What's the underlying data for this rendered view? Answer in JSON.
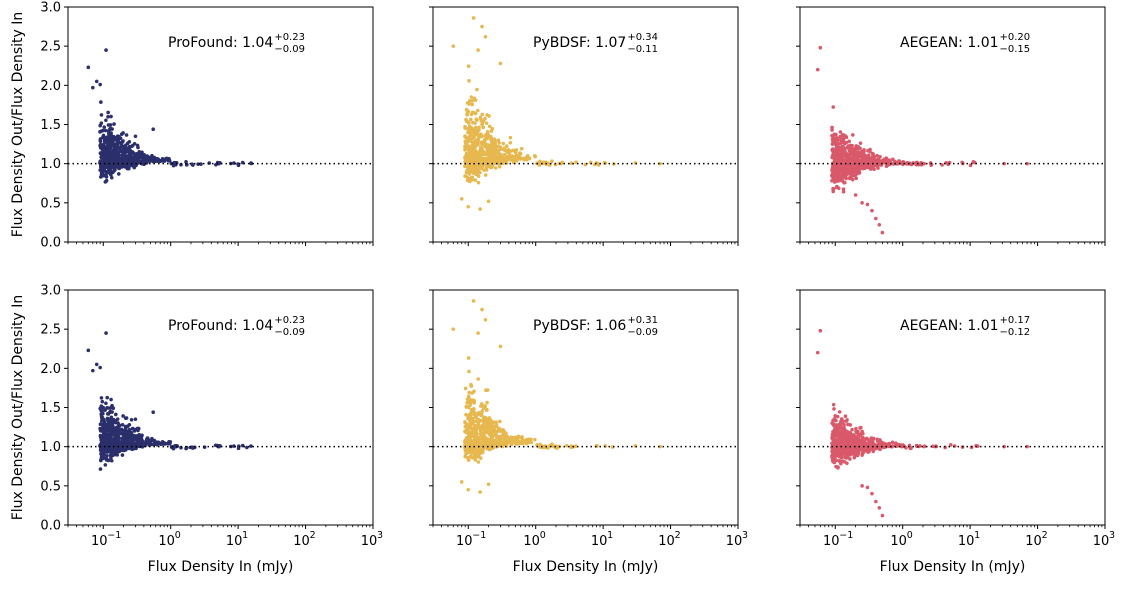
{
  "chart_data": {
    "type": "scatter",
    "layout": {
      "rows": 2,
      "cols": 3
    },
    "x_scale": "log",
    "xlim": [
      0.03,
      1000
    ],
    "ylim": [
      0,
      3
    ],
    "x_ticks": [
      0.1,
      1,
      10,
      100,
      1000
    ],
    "x_tick_labels": [
      {
        "base": "10",
        "exp": "−1"
      },
      {
        "base": "10",
        "exp": "0"
      },
      {
        "base": "10",
        "exp": "1"
      },
      {
        "base": "10",
        "exp": "2"
      },
      {
        "base": "10",
        "exp": "3"
      }
    ],
    "y_ticks": [
      0.0,
      0.5,
      1.0,
      1.5,
      2.0,
      2.5,
      3.0
    ],
    "y_tick_labels": [
      "0.0",
      "0.5",
      "1.0",
      "1.5",
      "2.0",
      "2.5",
      "3.0"
    ],
    "xlabel": "Flux Density In (mJy)",
    "ylabel": "Flux Density Out/Flux Density In",
    "reference_line": {
      "y": 1.0,
      "style": "dotted",
      "color": "#000000"
    },
    "panels": [
      {
        "row": 0,
        "col": 0,
        "name": "ProFound",
        "color": "#2b2f6b",
        "annotation": {
          "prefix": "ProFound: ",
          "value": "1.04",
          "upper": "+0.23",
          "lower": "−0.09"
        },
        "distribution": {
          "median": 1.04,
          "upper": 0.23,
          "lower": 0.09,
          "n": 700
        },
        "outliers": [
          [
            0.11,
            2.45
          ],
          [
            0.06,
            2.23
          ],
          [
            0.08,
            2.05
          ],
          [
            0.09,
            2.01
          ],
          [
            0.07,
            1.97
          ],
          [
            0.55,
            1.44
          ],
          [
            0.3,
            1.35
          ]
        ]
      },
      {
        "row": 0,
        "col": 1,
        "name": "PyBDSF",
        "color": "#e6b84f",
        "annotation": {
          "prefix": "PyBDSF: ",
          "value": "1.07",
          "upper": "+0.34",
          "lower": "−0.11"
        },
        "distribution": {
          "median": 1.07,
          "upper": 0.34,
          "lower": 0.11,
          "n": 700
        },
        "outliers": [
          [
            0.12,
            2.86
          ],
          [
            0.16,
            2.75
          ],
          [
            0.18,
            2.62
          ],
          [
            0.06,
            2.5
          ],
          [
            0.14,
            2.45
          ],
          [
            0.3,
            2.28
          ],
          [
            0.1,
            0.45
          ],
          [
            0.15,
            0.42
          ],
          [
            0.2,
            0.52
          ],
          [
            0.08,
            0.55
          ],
          [
            30,
            1.01
          ],
          [
            70,
            1.0
          ]
        ]
      },
      {
        "row": 0,
        "col": 2,
        "name": "AEGEAN",
        "color": "#d9596a",
        "annotation": {
          "prefix": "AEGEAN: ",
          "value": "1.01",
          "upper": "+0.20",
          "lower": "−0.15"
        },
        "distribution": {
          "median": 1.01,
          "upper": 0.2,
          "lower": 0.15,
          "n": 700
        },
        "outliers": [
          [
            0.06,
            2.48
          ],
          [
            0.055,
            2.2
          ],
          [
            0.5,
            0.12
          ],
          [
            0.45,
            0.22
          ],
          [
            0.4,
            0.3
          ],
          [
            0.35,
            0.4
          ],
          [
            0.3,
            0.48
          ],
          [
            0.25,
            0.5
          ],
          [
            0.2,
            0.6
          ],
          [
            32,
            1.0
          ],
          [
            70,
            1.0
          ]
        ]
      },
      {
        "row": 1,
        "col": 0,
        "name": "ProFound",
        "color": "#2b2f6b",
        "annotation": {
          "prefix": "ProFound: ",
          "value": "1.04",
          "upper": "+0.23",
          "lower": "−0.09"
        },
        "distribution": {
          "median": 1.04,
          "upper": 0.23,
          "lower": 0.09,
          "n": 700
        },
        "outliers": [
          [
            0.11,
            2.45
          ],
          [
            0.06,
            2.23
          ],
          [
            0.08,
            2.05
          ],
          [
            0.09,
            2.01
          ],
          [
            0.07,
            1.97
          ],
          [
            0.55,
            1.44
          ],
          [
            0.3,
            1.35
          ]
        ]
      },
      {
        "row": 1,
        "col": 1,
        "name": "PyBDSF",
        "color": "#e6b84f",
        "annotation": {
          "prefix": "PyBDSF: ",
          "value": "1.06",
          "upper": "+0.31",
          "lower": "−0.09"
        },
        "distribution": {
          "median": 1.06,
          "upper": 0.31,
          "lower": 0.09,
          "n": 700
        },
        "outliers": [
          [
            0.12,
            2.86
          ],
          [
            0.16,
            2.75
          ],
          [
            0.18,
            2.62
          ],
          [
            0.06,
            2.5
          ],
          [
            0.14,
            2.45
          ],
          [
            0.3,
            2.28
          ],
          [
            0.1,
            0.45
          ],
          [
            0.15,
            0.42
          ],
          [
            0.2,
            0.52
          ],
          [
            0.08,
            0.55
          ],
          [
            30,
            1.01
          ],
          [
            70,
            1.0
          ]
        ]
      },
      {
        "row": 1,
        "col": 2,
        "name": "AEGEAN",
        "color": "#d9596a",
        "annotation": {
          "prefix": "AEGEAN: ",
          "value": "1.01",
          "upper": "+0.17",
          "lower": "−0.12"
        },
        "distribution": {
          "median": 1.01,
          "upper": 0.17,
          "lower": 0.12,
          "n": 700
        },
        "outliers": [
          [
            0.06,
            2.48
          ],
          [
            0.055,
            2.2
          ],
          [
            0.5,
            0.12
          ],
          [
            0.45,
            0.22
          ],
          [
            0.4,
            0.3
          ],
          [
            0.35,
            0.4
          ],
          [
            0.3,
            0.48
          ],
          [
            0.25,
            0.5
          ],
          [
            32,
            1.0
          ],
          [
            70,
            1.0
          ]
        ]
      }
    ]
  }
}
